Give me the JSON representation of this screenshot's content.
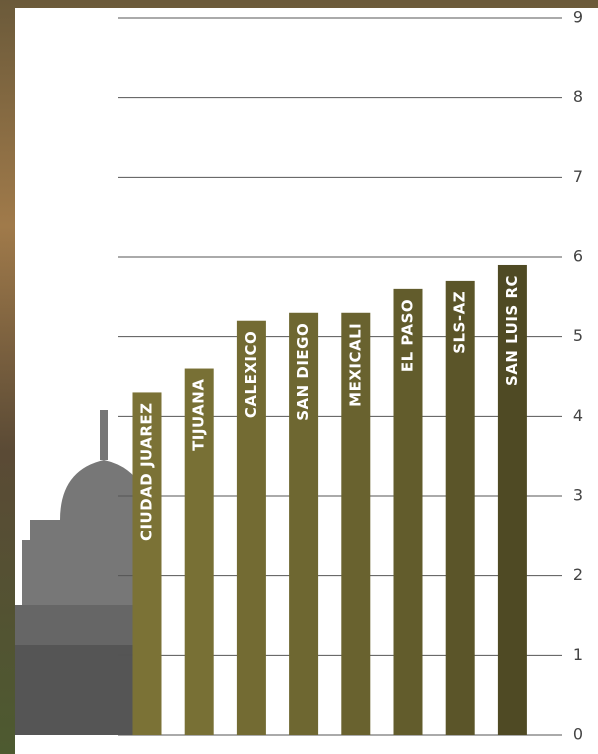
{
  "chart_data": {
    "type": "bar",
    "categories": [
      "CIUDAD JUAREZ",
      "TIJUANA",
      "CALEXICO",
      "SAN DIEGO",
      "MEXICALI",
      "EL PASO",
      "SLS-AZ",
      "SAN LUIS RC"
    ],
    "values": [
      4.3,
      4.6,
      5.2,
      5.3,
      5.3,
      5.6,
      5.7,
      5.9
    ],
    "colors": [
      "#7b7236",
      "#787035",
      "#736b33",
      "#6e6731",
      "#69622f",
      "#625c2c",
      "#5b5529",
      "#4f4a24"
    ],
    "ylim": [
      0,
      9
    ],
    "yticks": [
      0,
      1,
      2,
      3,
      4,
      5,
      6,
      7,
      8,
      9
    ],
    "grid": true,
    "y_axis_side": "right"
  }
}
